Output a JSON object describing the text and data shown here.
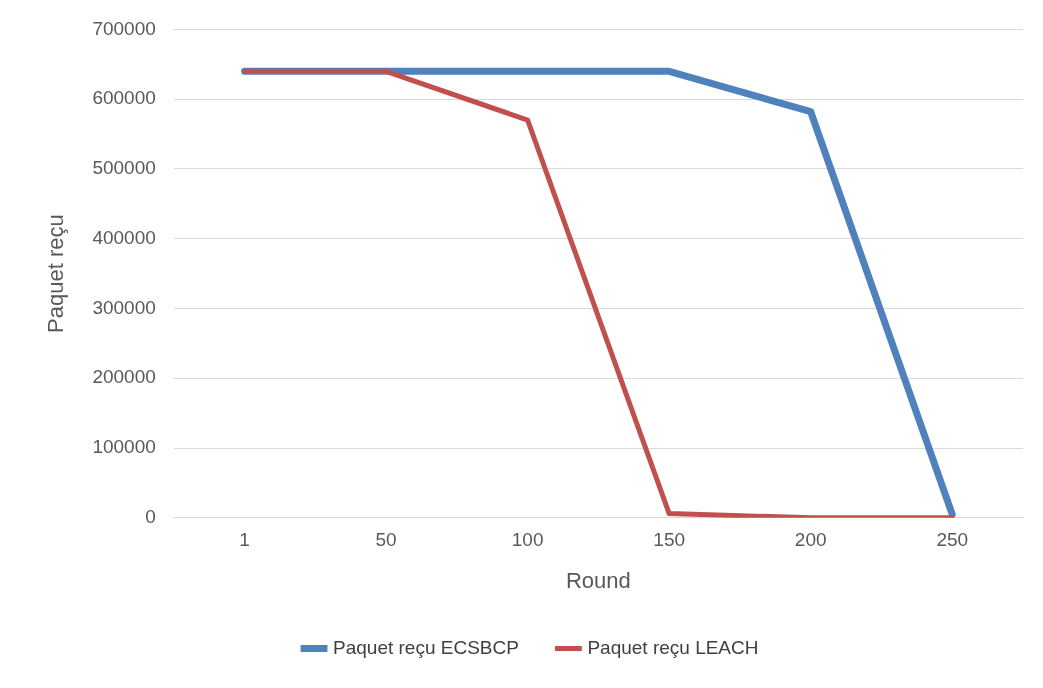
{
  "chart_data": {
    "type": "line",
    "xlabel": "Round",
    "ylabel": "Paquet reçu",
    "categories": [
      "1",
      "50",
      "100",
      "150",
      "200",
      "250"
    ],
    "series": [
      {
        "name": "Paquet reçu ECSBCP",
        "color": "#4f81bd",
        "values": [
          640000,
          640000,
          640000,
          640000,
          582000,
          5000
        ]
      },
      {
        "name": "Paquet reçu LEACH",
        "color": "#c0504d",
        "values": [
          640000,
          640000,
          570000,
          6000,
          0,
          0
        ]
      }
    ],
    "ylim": [
      0,
      700000
    ],
    "yticks": [
      0,
      100000,
      200000,
      300000,
      400000,
      500000,
      600000,
      700000
    ],
    "grid": "y",
    "legend": "bottom",
    "marker": "none",
    "line_style": "solid"
  }
}
